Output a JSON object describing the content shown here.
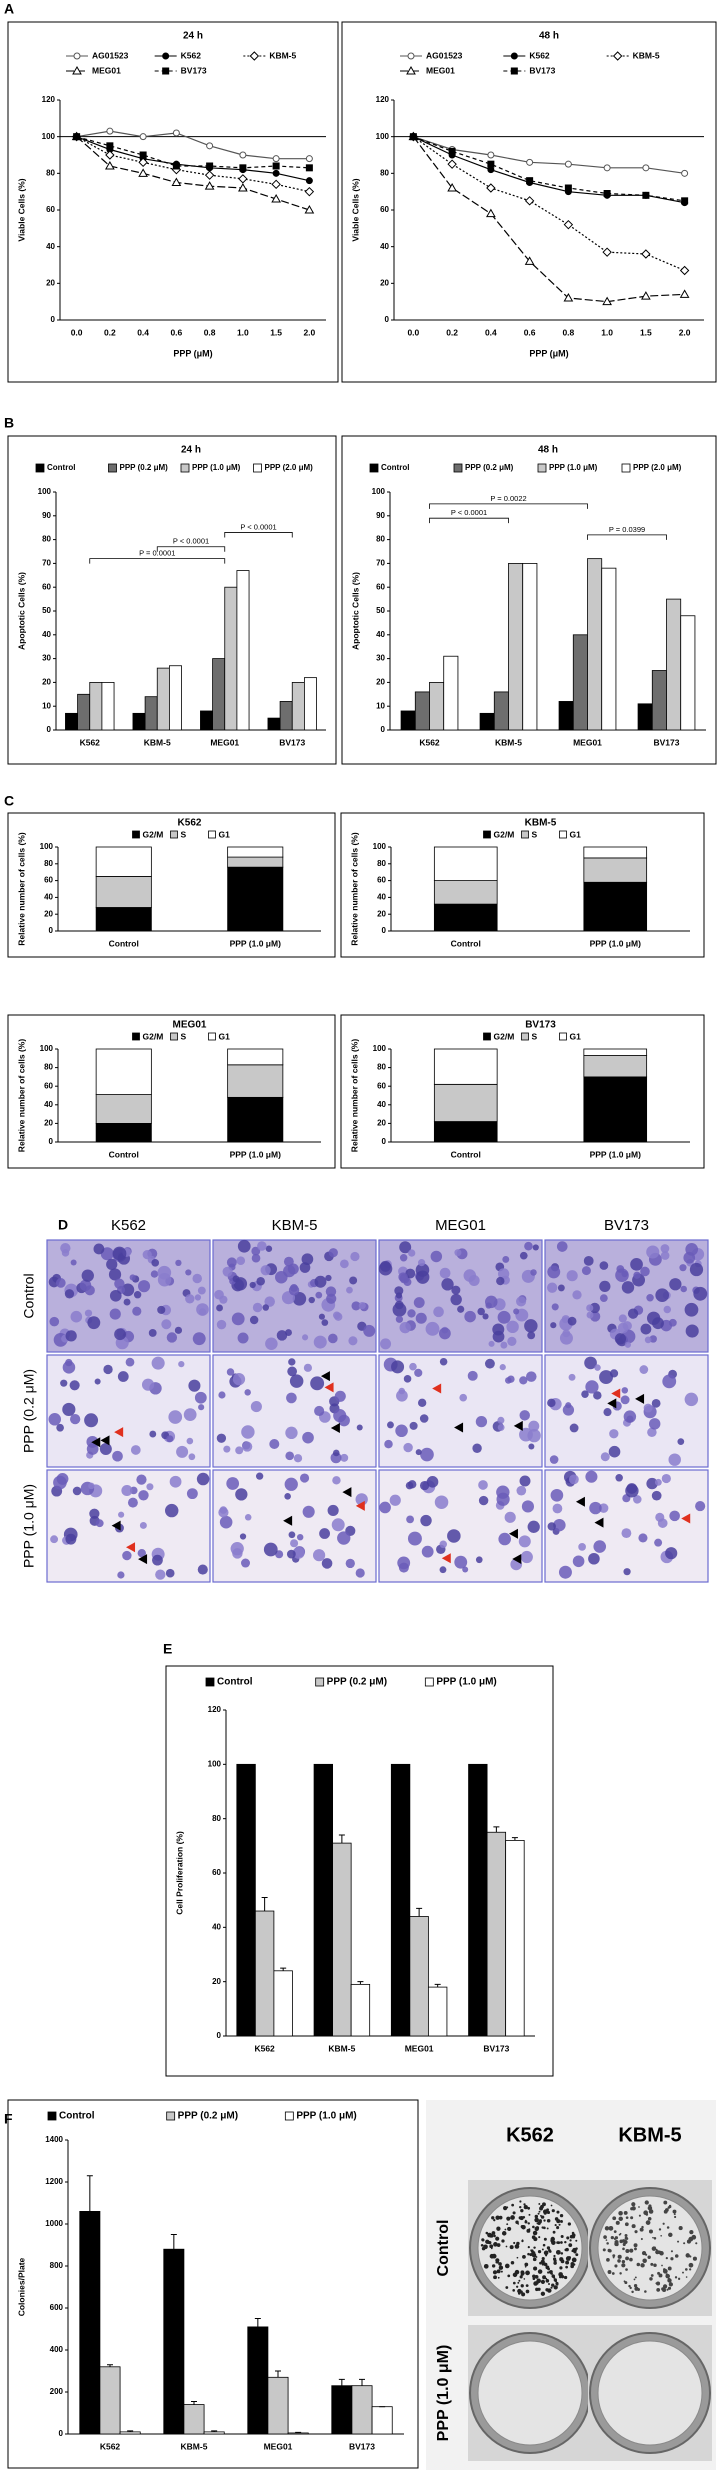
{
  "panel_letters": [
    "A",
    "B",
    "C",
    "D",
    "E",
    "F"
  ],
  "chart_data": [
    {
      "type": "line",
      "title": "24 h",
      "x_label": "PPP (μM)",
      "y_label": "Viable Cells (%)",
      "categories": [
        "0.0",
        "0.2",
        "0.4",
        "0.6",
        "0.8",
        "1.0",
        "1.5",
        "2.0"
      ],
      "ylim": [
        0,
        120
      ],
      "yticks": [
        0,
        20,
        40,
        60,
        80,
        100,
        120
      ],
      "reference_line": 100,
      "series": [
        {
          "name": "AG01523",
          "color": "#555555",
          "marker": "open-circle",
          "dash": "solid",
          "values": [
            100,
            103,
            100,
            102,
            95,
            90,
            88,
            88
          ]
        },
        {
          "name": "K562",
          "color": "#000000",
          "marker": "filled-circle",
          "dash": "solid",
          "values": [
            100,
            93,
            88,
            85,
            83,
            82,
            80,
            76
          ]
        },
        {
          "name": "KBM-5",
          "color": "#000000",
          "marker": "open-diamond",
          "dash": "dotted",
          "values": [
            100,
            90,
            86,
            82,
            79,
            77,
            74,
            70
          ]
        },
        {
          "name": "MEG01",
          "color": "#000000",
          "marker": "open-triangle",
          "dash": "long-dash",
          "values": [
            100,
            84,
            80,
            75,
            73,
            72,
            66,
            60
          ]
        },
        {
          "name": "BV173",
          "color": "#000000",
          "marker": "filled-square",
          "dash": "dashed",
          "values": [
            100,
            95,
            90,
            84,
            84,
            83,
            84,
            83
          ]
        }
      ]
    },
    {
      "type": "line",
      "title": "48 h",
      "x_label": "PPP (μM)",
      "y_label": "Viable Cells (%)",
      "categories": [
        "0.0",
        "0.2",
        "0.4",
        "0.6",
        "0.8",
        "1.0",
        "1.5",
        "2.0"
      ],
      "ylim": [
        0,
        120
      ],
      "yticks": [
        0,
        20,
        40,
        60,
        80,
        100,
        120
      ],
      "reference_line": 100,
      "series": [
        {
          "name": "AG01523",
          "color": "#555555",
          "marker": "open-circle",
          "dash": "solid",
          "values": [
            100,
            93,
            90,
            86,
            85,
            83,
            83,
            80
          ]
        },
        {
          "name": "K562",
          "color": "#000000",
          "marker": "filled-circle",
          "dash": "solid",
          "values": [
            100,
            90,
            82,
            75,
            70,
            68,
            68,
            64
          ]
        },
        {
          "name": "KBM-5",
          "color": "#000000",
          "marker": "open-diamond",
          "dash": "dotted",
          "values": [
            100,
            85,
            72,
            65,
            52,
            37,
            36,
            27
          ]
        },
        {
          "name": "MEG01",
          "color": "#000000",
          "marker": "open-triangle",
          "dash": "long-dash",
          "values": [
            100,
            72,
            58,
            32,
            12,
            10,
            13,
            14
          ]
        },
        {
          "name": "BV173",
          "color": "#000000",
          "marker": "filled-square",
          "dash": "dashed",
          "values": [
            100,
            92,
            85,
            76,
            72,
            69,
            68,
            65
          ]
        }
      ]
    },
    {
      "type": "bar",
      "title": "24 h",
      "y_label": "Apoptotic Cells (%)",
      "categories": [
        "K562",
        "KBM-5",
        "MEG01",
        "BV173"
      ],
      "ylim": [
        0,
        100
      ],
      "yticks": [
        0,
        10,
        20,
        30,
        40,
        50,
        60,
        70,
        80,
        90,
        100
      ],
      "annotations": [
        "P = 0.0001",
        "P < 0.0001",
        "P < 0.0001"
      ],
      "series": [
        {
          "name": "Control",
          "color": "#000000",
          "values": [
            7,
            7,
            8,
            5
          ]
        },
        {
          "name": "PPP (0.2 μM)",
          "color": "#6e6e6e",
          "values": [
            15,
            14,
            30,
            12
          ]
        },
        {
          "name": "PPP (1.0 μM)",
          "color": "#c8c8c8",
          "values": [
            20,
            26,
            60,
            20
          ]
        },
        {
          "name": "PPP (2.0 μM)",
          "color": "#ffffff",
          "values": [
            20,
            27,
            67,
            22
          ]
        }
      ]
    },
    {
      "type": "bar",
      "title": "48 h",
      "y_label": "Apoptotic Cells (%)",
      "categories": [
        "K562",
        "KBM-5",
        "MEG01",
        "BV173"
      ],
      "ylim": [
        0,
        100
      ],
      "yticks": [
        0,
        10,
        20,
        30,
        40,
        50,
        60,
        70,
        80,
        90,
        100
      ],
      "annotations": [
        "P = 0.0022",
        "P < 0.0001",
        "P = 0.0399"
      ],
      "series": [
        {
          "name": "Control",
          "color": "#000000",
          "values": [
            8,
            7,
            12,
            11
          ]
        },
        {
          "name": "PPP (0.2 μM)",
          "color": "#6e6e6e",
          "values": [
            16,
            16,
            40,
            25
          ]
        },
        {
          "name": "PPP (1.0 μM)",
          "color": "#c8c8c8",
          "values": [
            20,
            70,
            72,
            55
          ]
        },
        {
          "name": "PPP (2.0 μM)",
          "color": "#ffffff",
          "values": [
            31,
            70,
            68,
            48
          ]
        }
      ]
    },
    {
      "type": "stacked_bar",
      "title": "K562",
      "y_label": "Relative number of cells (%)",
      "categories": [
        "Control",
        "PPP (1.0 μM)"
      ],
      "ylim": [
        0,
        100
      ],
      "yticks": [
        0,
        20,
        40,
        60,
        80,
        100
      ],
      "series": [
        {
          "name": "G2/M",
          "color": "#000000",
          "values": [
            28,
            76
          ]
        },
        {
          "name": "S",
          "color": "#c8c8c8",
          "values": [
            37,
            12
          ]
        },
        {
          "name": "G1",
          "color": "#ffffff",
          "values": [
            35,
            12
          ]
        }
      ]
    },
    {
      "type": "stacked_bar",
      "title": "KBM-5",
      "y_label": "Relative number of cells (%)",
      "categories": [
        "Control",
        "PPP (1.0 μM)"
      ],
      "ylim": [
        0,
        100
      ],
      "yticks": [
        0,
        20,
        40,
        60,
        80,
        100
      ],
      "series": [
        {
          "name": "G2/M",
          "color": "#000000",
          "values": [
            32,
            58
          ]
        },
        {
          "name": "S",
          "color": "#c8c8c8",
          "values": [
            28,
            29
          ]
        },
        {
          "name": "G1",
          "color": "#ffffff",
          "values": [
            40,
            13
          ]
        }
      ]
    },
    {
      "type": "stacked_bar",
      "title": "MEG01",
      "y_label": "Relative number of cells (%)",
      "categories": [
        "Control",
        "PPP (1.0 μM)"
      ],
      "ylim": [
        0,
        100
      ],
      "yticks": [
        0,
        20,
        40,
        60,
        80,
        100
      ],
      "series": [
        {
          "name": "G2/M",
          "color": "#000000",
          "values": [
            20,
            48
          ]
        },
        {
          "name": "S",
          "color": "#c8c8c8",
          "values": [
            31,
            35
          ]
        },
        {
          "name": "G1",
          "color": "#ffffff",
          "values": [
            49,
            17
          ]
        }
      ]
    },
    {
      "type": "stacked_bar",
      "title": "BV173",
      "y_label": "Relative number of cells (%)",
      "categories": [
        "Control",
        "PPP (1.0 μM)"
      ],
      "ylim": [
        0,
        100
      ],
      "yticks": [
        0,
        20,
        40,
        60,
        80,
        100
      ],
      "series": [
        {
          "name": "G2/M",
          "color": "#000000",
          "values": [
            22,
            70
          ]
        },
        {
          "name": "S",
          "color": "#c8c8c8",
          "values": [
            40,
            23
          ]
        },
        {
          "name": "G1",
          "color": "#ffffff",
          "values": [
            38,
            7
          ]
        }
      ]
    },
    {
      "type": "bar",
      "y_label": "Cell Proliferation (%)",
      "categories": [
        "K562",
        "KBM-5",
        "MEG01",
        "BV173"
      ],
      "ylim": [
        0,
        120
      ],
      "yticks": [
        0,
        20,
        40,
        60,
        80,
        100,
        120
      ],
      "series": [
        {
          "name": "Control",
          "color": "#000000",
          "values": [
            100,
            100,
            100,
            100
          ]
        },
        {
          "name": "PPP (0.2 μM)",
          "color": "#c8c8c8",
          "values": [
            46,
            71,
            44,
            75
          ],
          "errors": [
            5,
            3,
            3,
            2
          ]
        },
        {
          "name": "PPP (1.0 μM)",
          "color": "#ffffff",
          "values": [
            24,
            19,
            18,
            72
          ],
          "errors": [
            1,
            1,
            1,
            1
          ]
        }
      ]
    },
    {
      "type": "bar",
      "y_label": "Colonies/Plate",
      "categories": [
        "K562",
        "KBM-5",
        "MEG01",
        "BV173"
      ],
      "ylim": [
        0,
        1400
      ],
      "yticks": [
        0,
        200,
        400,
        600,
        800,
        1000,
        1200,
        1400
      ],
      "series": [
        {
          "name": "Control",
          "color": "#000000",
          "values": [
            1060,
            880,
            510,
            230
          ],
          "errors": [
            170,
            70,
            40,
            30
          ]
        },
        {
          "name": "PPP (0.2 μM)",
          "color": "#c8c8c8",
          "values": [
            320,
            140,
            270,
            230
          ],
          "errors": [
            10,
            15,
            30,
            30
          ]
        },
        {
          "name": "PPP (1.0 μM)",
          "color": "#ffffff",
          "values": [
            10,
            10,
            5,
            130
          ],
          "errors": [
            5,
            5,
            3,
            0
          ]
        }
      ]
    }
  ],
  "micrographs": {
    "columns": [
      "K562",
      "KBM-5",
      "MEG01",
      "BV173"
    ],
    "rows": [
      "Control",
      "PPP (0.2 μM)",
      "PPP (1.0 μM)"
    ]
  },
  "colony_photos": {
    "columns": [
      "K562",
      "KBM-5"
    ],
    "rows": [
      "Control",
      "PPP (1.0 μM)"
    ]
  }
}
